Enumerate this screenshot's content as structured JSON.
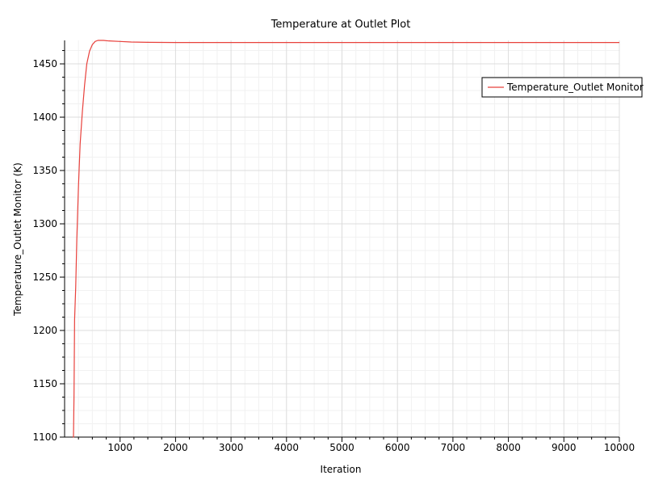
{
  "chart_data": {
    "type": "line",
    "title": "Temperature at Outlet Plot",
    "xlabel": "Iteration",
    "ylabel": "Temperature_Outlet Monitor (K)",
    "xlim": [
      0,
      10000
    ],
    "ylim": [
      1100,
      1472
    ],
    "xticks": [
      1000,
      2000,
      3000,
      4000,
      5000,
      6000,
      7000,
      8000,
      9000,
      10000
    ],
    "yticks": [
      1100,
      1150,
      1200,
      1250,
      1300,
      1350,
      1400,
      1450
    ],
    "grid": true,
    "legend": {
      "position": "top-right"
    },
    "colors": {
      "series": "#e8413c"
    },
    "series": [
      {
        "name": "Temperature_Outlet Monitor",
        "x": [
          150,
          160,
          170,
          180,
          200,
          220,
          250,
          280,
          320,
          360,
          400,
          450,
          500,
          550,
          600,
          700,
          800,
          1000,
          1200,
          1500,
          2000,
          3000,
          5000,
          7000,
          10000
        ],
        "y": [
          1100,
          1100,
          1140,
          1210,
          1240,
          1285,
          1335,
          1375,
          1405,
          1430,
          1450,
          1462,
          1468,
          1471,
          1472,
          1472,
          1471.5,
          1471,
          1470.5,
          1470.2,
          1470,
          1470,
          1470,
          1470,
          1470
        ]
      }
    ]
  }
}
